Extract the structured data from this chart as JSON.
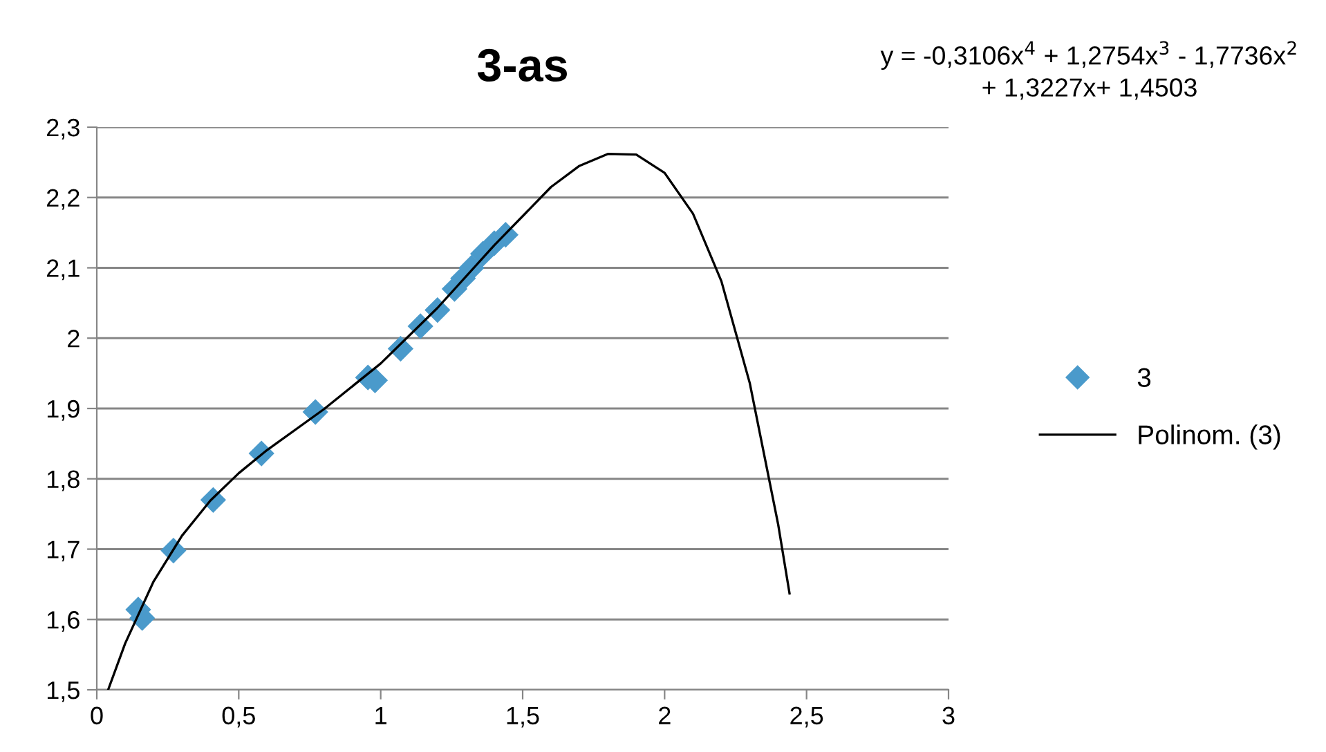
{
  "chart_data": {
    "type": "scatter",
    "title": "3-as",
    "annotations": [
      "y = -0,3106x$^{4}$ + 1,2754x$^{3}$ - 1,7736x$^{2}$\n+ 1,3227x+ 1,4503"
    ],
    "series": [
      {
        "name": "3",
        "color": "#4a9acb",
        "marker": "diamond",
        "x": [
          0.146,
          0.16,
          0.27,
          0.41,
          0.58,
          0.77,
          0.955,
          0.98,
          1.07,
          1.14,
          1.2,
          1.26,
          1.29,
          1.32,
          1.36,
          1.4,
          1.44
        ],
        "values": [
          1.614,
          1.602,
          1.698,
          1.77,
          1.836,
          1.895,
          1.944,
          1.94,
          1.985,
          2.017,
          2.04,
          2.07,
          2.085,
          2.1,
          2.12,
          2.135,
          2.147
        ]
      },
      {
        "name": "Polinom. (3)",
        "type": "line",
        "color": "#000000",
        "line_style": "solid",
        "x": [
          0.04,
          0.1,
          0.2,
          0.3,
          0.4,
          0.5,
          0.6,
          0.8,
          1.0,
          1.2,
          1.4,
          1.6,
          1.7,
          1.8,
          1.9,
          2.0,
          2.1,
          2.2,
          2.3,
          2.4,
          2.44
        ],
        "values": [
          1.5,
          1.566,
          1.654,
          1.719,
          1.769,
          1.808,
          1.841,
          1.899,
          1.964,
          2.043,
          2.132,
          2.215,
          2.245,
          2.262,
          2.261,
          2.235,
          2.177,
          2.081,
          1.936,
          1.735,
          1.637
        ]
      }
    ],
    "xlim": [
      0,
      3
    ],
    "xticks": [
      0,
      {
        "value": 0.5,
        "label": "0,5"
      },
      1,
      {
        "value": 1.5,
        "label": "1,5"
      },
      2,
      {
        "value": 2.5,
        "label": "2,5"
      },
      3
    ],
    "ylim": [
      1.5,
      2.3
    ],
    "yticks": [
      {
        "value": 1.5,
        "label": "1,5"
      },
      {
        "value": 1.6,
        "label": "1,6"
      },
      {
        "value": 1.7,
        "label": "1,7"
      },
      {
        "value": 1.8,
        "label": "1,8"
      },
      {
        "value": 1.9,
        "label": "1,9"
      },
      2,
      {
        "value": 2.1,
        "label": "2,1"
      },
      {
        "value": 2.2,
        "label": "2,2"
      },
      {
        "value": 2.3,
        "label": "2,3"
      }
    ],
    "grid": "y",
    "legend": "right"
  }
}
